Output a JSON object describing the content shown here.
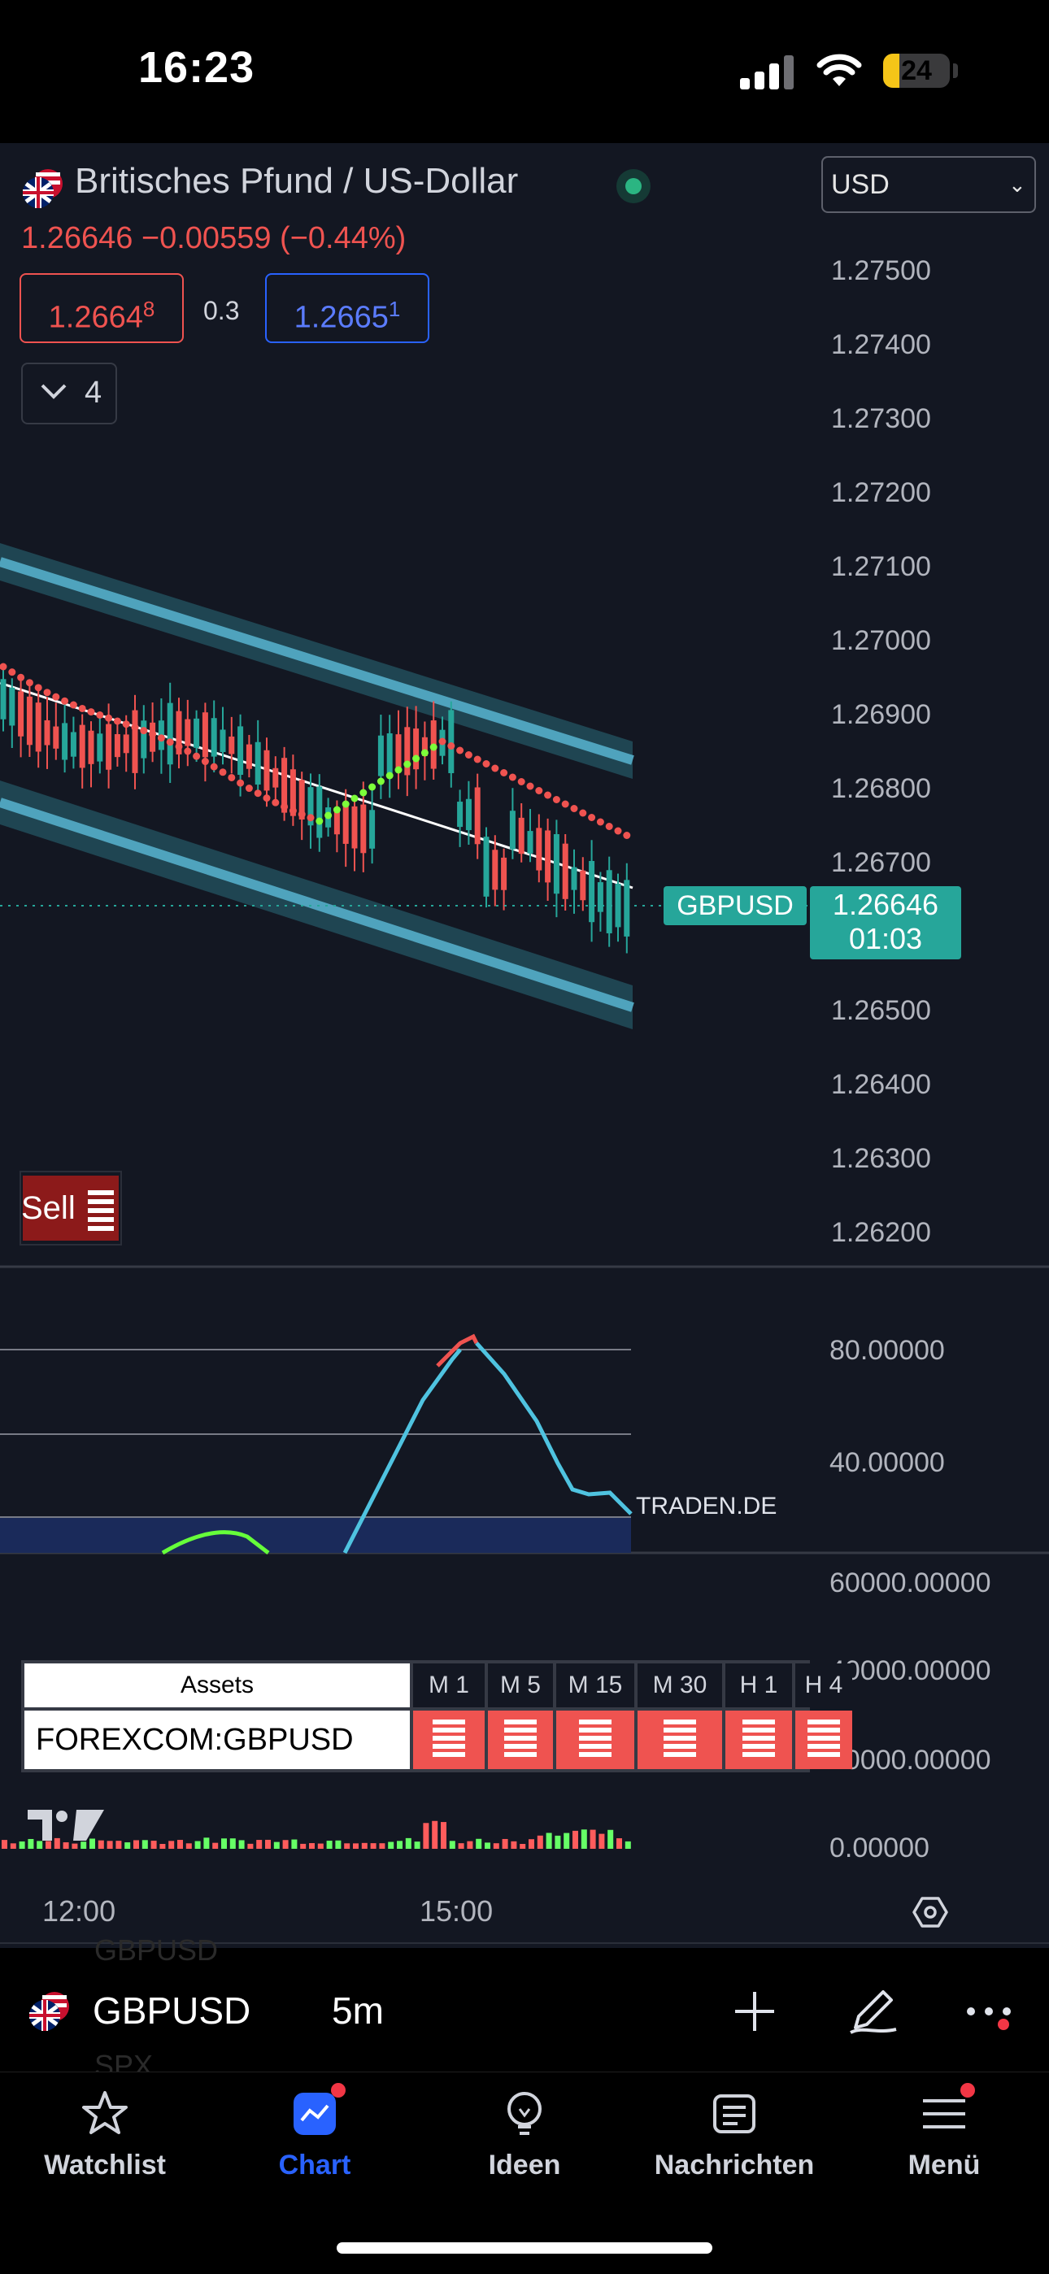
{
  "status_bar": {
    "time": "16:23",
    "battery": "24",
    "battery_level_percent": 24
  },
  "header": {
    "title": "Britisches Pfund / US-Dollar",
    "price_change": "1.26646 −0.00559 (−0.44%)",
    "currency": "USD",
    "sell_price_main": "1.2664",
    "sell_price_pip": "8",
    "spread": "0.3",
    "buy_price_main": "1.2665",
    "buy_price_pip": "1",
    "indicator_count": "4"
  },
  "price_axis": {
    "labels": [
      "1.27500",
      "1.27400",
      "1.27300",
      "1.27200",
      "1.27100",
      "1.27000",
      "1.26900",
      "1.26800",
      "1.26700",
      "1.26500",
      "1.26400",
      "1.26300",
      "1.26200"
    ],
    "values": [
      1.275,
      1.274,
      1.273,
      1.272,
      1.271,
      1.27,
      1.269,
      1.268,
      1.267,
      1.265,
      1.264,
      1.263,
      1.262
    ]
  },
  "last_price": {
    "symbol": "GBPUSD",
    "value": "1.26646",
    "timer": "01:03"
  },
  "signal": {
    "label": "Sell"
  },
  "oscillator": {
    "labels": [
      "80.00000",
      "40.00000"
    ],
    "watermark": "TRADEN.DE"
  },
  "volume_axis": {
    "labels": [
      "60000.00000",
      "40000.00000",
      "20000.00000",
      "0.00000"
    ]
  },
  "asset_table": {
    "header": [
      "Assets",
      "M 1",
      "M 5",
      "M 15",
      "M 30",
      "H 1",
      "H 4"
    ],
    "row": "FOREXCOM:GBPUSD"
  },
  "time_axis": {
    "labels": [
      "12:00",
      "15:00"
    ]
  },
  "toolbar": {
    "symbol": "GBPUSD",
    "interval": "5m",
    "ghost_above": "GBPUSD",
    "ghost_below": "SPX"
  },
  "tabs": [
    {
      "label": "Watchlist",
      "icon": "star-icon"
    },
    {
      "label": "Chart",
      "icon": "chart-icon"
    },
    {
      "label": "Ideen",
      "icon": "lightbulb-icon"
    },
    {
      "label": "Nachrichten",
      "icon": "news-icon"
    },
    {
      "label": "Menü",
      "icon": "menu-icon"
    }
  ],
  "colors": {
    "background": "#131722",
    "bullish": "#26a69a",
    "bearish": "#ef5350",
    "channel": "#3a8fa8",
    "active_tab": "#2962ff"
  }
}
